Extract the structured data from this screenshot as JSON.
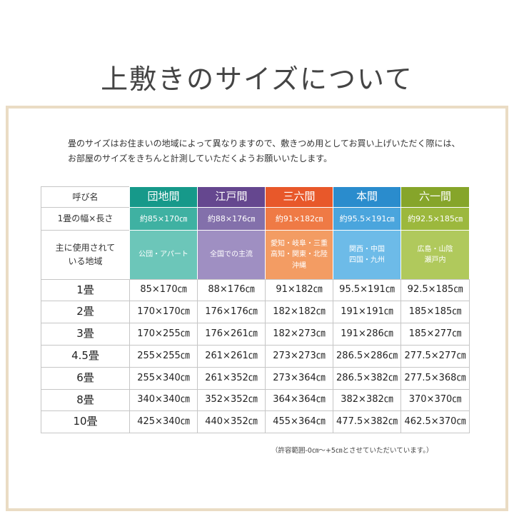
{
  "title": "上敷きのサイズについて",
  "intro": [
    "畳のサイズはお住まいの地域によって異なりますので、敷きつめ用としてお買い上げいただく際には、",
    "お部屋のサイズをきちんと計測していただくようお願いいたします。"
  ],
  "table": {
    "header": [
      "呼び名",
      "団地間",
      "江戸間",
      "三六間",
      "本間",
      "六一間"
    ],
    "size_row": [
      "1畳の幅×長さ",
      "約85×170㎝",
      "約88×176㎝",
      "約91×182㎝",
      "約95.5×191㎝",
      "約92.5×185㎝"
    ],
    "region_row": [
      [
        "主に使用されて",
        "いる地域"
      ],
      [
        "公団・アパート"
      ],
      [
        "全国での主流"
      ],
      [
        "愛知・岐阜・三重",
        "高知・関東・北陸",
        "沖縄"
      ],
      [
        "関西・中国",
        "四国・九州"
      ],
      [
        "広島・山陰",
        "瀬戸内"
      ]
    ],
    "rows": [
      [
        "1畳",
        "85×170㎝",
        "88×176㎝",
        "91×182㎝",
        "95.5×191㎝",
        "92.5×185㎝"
      ],
      [
        "2畳",
        "170×170㎝",
        "176×176㎝",
        "182×182㎝",
        "191×191㎝",
        "185×185㎝"
      ],
      [
        "3畳",
        "170×255㎝",
        "176×261㎝",
        "182×273㎝",
        "191×286㎝",
        "185×277㎝"
      ],
      [
        "4.5畳",
        "255×255㎝",
        "261×261㎝",
        "273×273㎝",
        "286.5×286㎝",
        "277.5×277㎝"
      ],
      [
        "6畳",
        "255×340㎝",
        "261×352㎝",
        "273×364㎝",
        "286.5×382㎝",
        "277.5×368㎝"
      ],
      [
        "8畳",
        "340×340㎝",
        "352×352㎝",
        "364×364㎝",
        "382×382㎝",
        "370×370㎝"
      ],
      [
        "10畳",
        "425×340㎝",
        "440×352㎝",
        "455×364㎝",
        "477.5×382㎝",
        "462.5×370㎝"
      ]
    ]
  },
  "note": "（許容範囲-0㎝～+5㎝とさせていただいています。）"
}
